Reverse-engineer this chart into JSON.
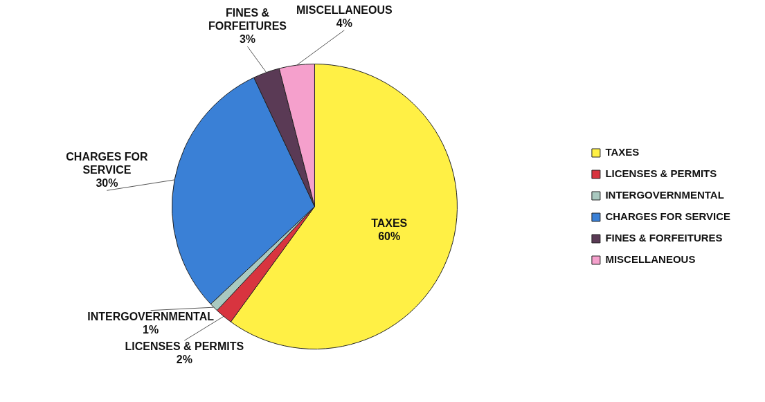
{
  "chart_data": {
    "type": "pie",
    "categories": [
      "TAXES",
      "LICENSES & PERMITS",
      "INTERGOVERNMENTAL",
      "CHARGES FOR SERVICE",
      "FINES & FORFEITURES",
      "MISCELLANEOUS"
    ],
    "values": [
      60,
      2,
      1,
      30,
      3,
      4
    ],
    "value_labels": [
      "60%",
      "2%",
      "1%",
      "30%",
      "3%",
      "4%"
    ],
    "colors": [
      "#fff045",
      "#d8343f",
      "#a9c9c0",
      "#3a80d6",
      "#5a3a55",
      "#f5a0cc"
    ],
    "legend": "right"
  }
}
